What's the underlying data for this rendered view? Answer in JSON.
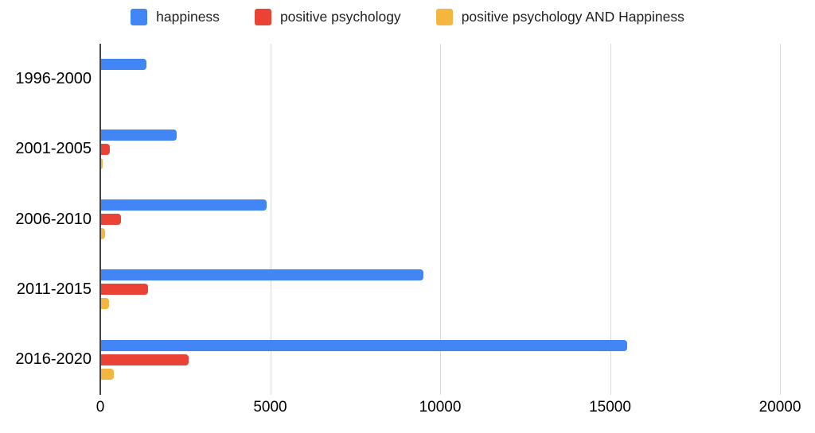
{
  "chart_data": {
    "type": "bar",
    "orientation": "horizontal",
    "title": "",
    "categories": [
      "1996-2000",
      "2001-2005",
      "2006-2010",
      "2011-2015",
      "2016-2020"
    ],
    "series": [
      {
        "name": "happiness",
        "color": "#4285F4",
        "values": [
          1350,
          2250,
          4900,
          9500,
          15500
        ]
      },
      {
        "name": "positive psychology",
        "color": "#EA4335",
        "values": [
          0,
          280,
          600,
          1400,
          2600
        ]
      },
      {
        "name": "positive psychology AND Happiness",
        "color": "#F4B63E",
        "values": [
          0,
          75,
          150,
          260,
          400
        ]
      }
    ],
    "xlim": [
      0,
      20000
    ],
    "x_ticks": [
      0,
      5000,
      10000,
      15000,
      20000
    ],
    "grid": true,
    "legend_position": "top",
    "axis_color": "#424242",
    "gridline_color": "#DADADA",
    "text_color": "#000000",
    "background_color": "#FFFFFF"
  }
}
